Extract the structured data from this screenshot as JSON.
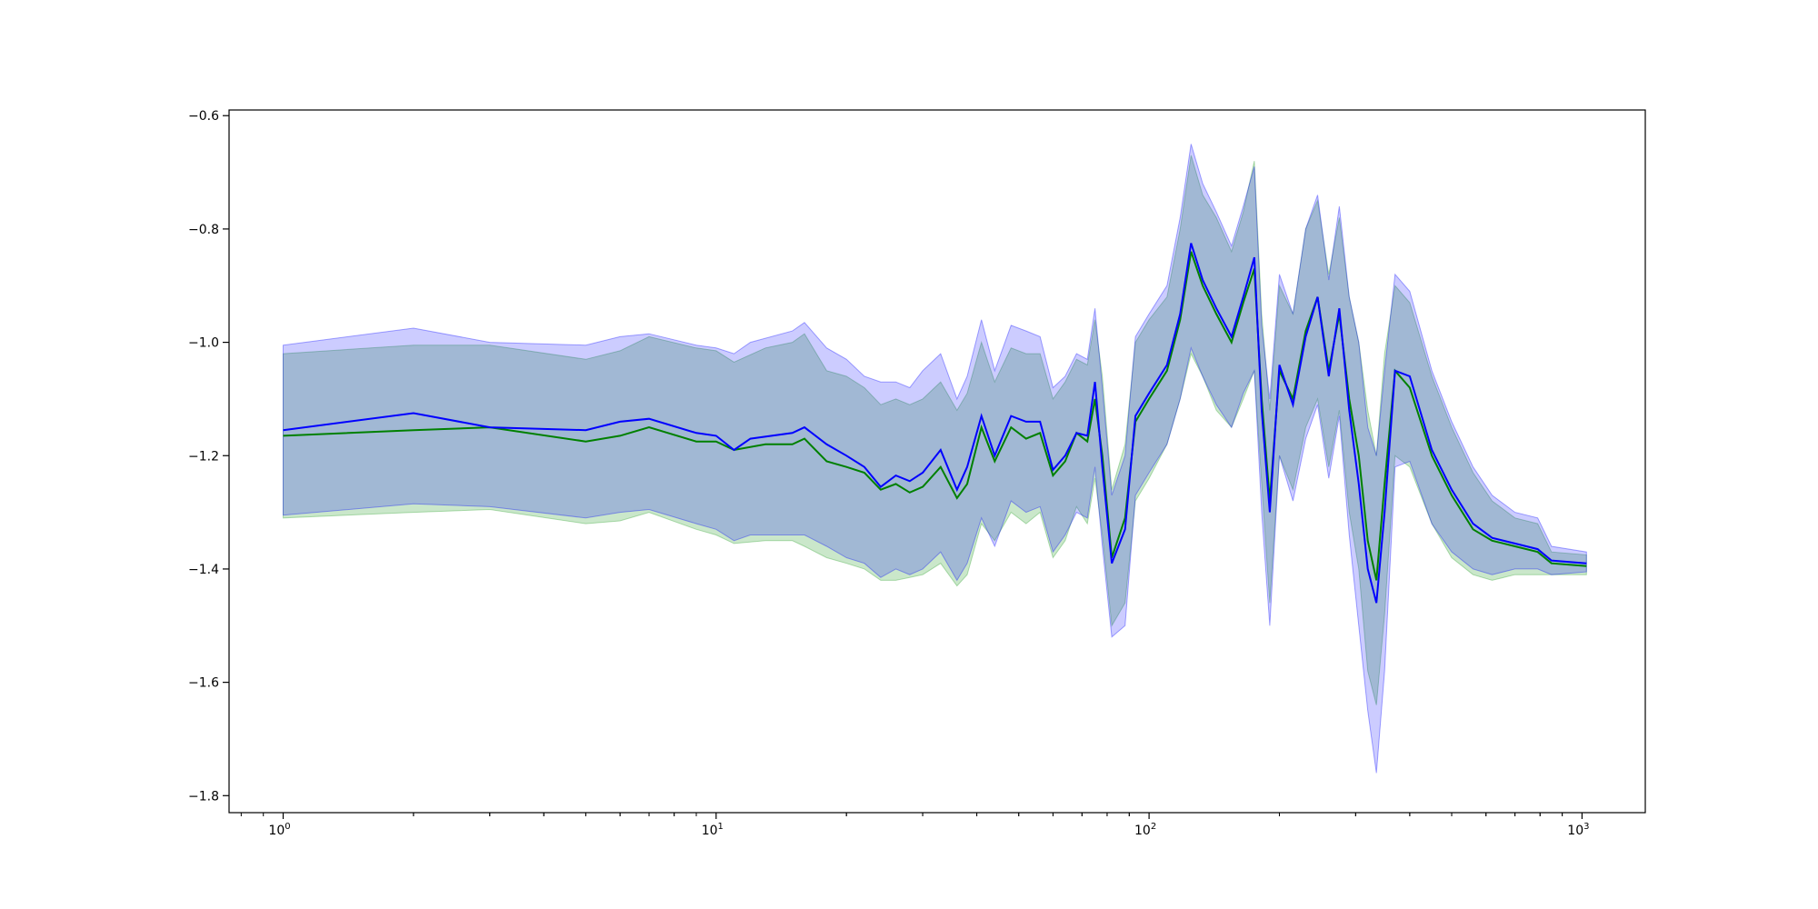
{
  "chart_data": {
    "type": "line",
    "x_scale": "log",
    "xlim": [
      0.75,
      1400
    ],
    "ylim": [
      -1.83,
      -0.59
    ],
    "grid": false,
    "legend": "none",
    "x_ticks": [
      {
        "value": 1,
        "base": "10",
        "exp": "0"
      },
      {
        "value": 10,
        "base": "10",
        "exp": "1"
      },
      {
        "value": 100,
        "base": "10",
        "exp": "2"
      },
      {
        "value": 1000,
        "base": "10",
        "exp": "3"
      }
    ],
    "y_ticks": [
      {
        "value": -0.6,
        "label": "−0.6"
      },
      {
        "value": -0.8,
        "label": "−0.8"
      },
      {
        "value": -1.0,
        "label": "−1.0"
      },
      {
        "value": -1.2,
        "label": "−1.2"
      },
      {
        "value": -1.4,
        "label": "−1.4"
      },
      {
        "value": -1.6,
        "label": "−1.6"
      },
      {
        "value": -1.8,
        "label": "−1.8"
      }
    ],
    "series": [
      {
        "color": "#008000",
        "band_color": "#2ca02c",
        "points": [
          [
            1,
            -1.165,
            -1.02,
            -1.31
          ],
          [
            2,
            -1.155,
            -1.005,
            -1.3
          ],
          [
            3,
            -1.15,
            -1.005,
            -1.295
          ],
          [
            5,
            -1.175,
            -1.03,
            -1.32
          ],
          [
            6,
            -1.165,
            -1.015,
            -1.315
          ],
          [
            7,
            -1.15,
            -0.99,
            -1.3
          ],
          [
            9,
            -1.175,
            -1.01,
            -1.33
          ],
          [
            10,
            -1.175,
            -1.015,
            -1.34
          ],
          [
            11,
            -1.19,
            -1.035,
            -1.355
          ],
          [
            13,
            -1.18,
            -1.01,
            -1.35
          ],
          [
            15,
            -1.18,
            -1.0,
            -1.35
          ],
          [
            16,
            -1.17,
            -0.985,
            -1.36
          ],
          [
            18,
            -1.21,
            -1.05,
            -1.38
          ],
          [
            20,
            -1.22,
            -1.06,
            -1.39
          ],
          [
            22,
            -1.23,
            -1.08,
            -1.4
          ],
          [
            24,
            -1.26,
            -1.11,
            -1.42
          ],
          [
            26,
            -1.25,
            -1.1,
            -1.42
          ],
          [
            28,
            -1.265,
            -1.11,
            -1.415
          ],
          [
            30,
            -1.255,
            -1.1,
            -1.41
          ],
          [
            33,
            -1.22,
            -1.07,
            -1.39
          ],
          [
            36,
            -1.275,
            -1.12,
            -1.43
          ],
          [
            38,
            -1.25,
            -1.09,
            -1.41
          ],
          [
            41,
            -1.15,
            -1.0,
            -1.32
          ],
          [
            44,
            -1.21,
            -1.07,
            -1.35
          ],
          [
            48,
            -1.15,
            -1.01,
            -1.3
          ],
          [
            52,
            -1.17,
            -1.02,
            -1.32
          ],
          [
            56,
            -1.16,
            -1.02,
            -1.3
          ],
          [
            60,
            -1.235,
            -1.1,
            -1.38
          ],
          [
            64,
            -1.21,
            -1.07,
            -1.35
          ],
          [
            68,
            -1.16,
            -1.03,
            -1.29
          ],
          [
            72,
            -1.175,
            -1.04,
            -1.32
          ],
          [
            75,
            -1.1,
            -0.96,
            -1.24
          ],
          [
            78,
            -1.2,
            -1.06,
            -1.34
          ],
          [
            82,
            -1.38,
            -1.26,
            -1.5
          ],
          [
            88,
            -1.31,
            -1.18,
            -1.46
          ],
          [
            93,
            -1.14,
            -1.0,
            -1.28
          ],
          [
            100,
            -1.1,
            -0.96,
            -1.24
          ],
          [
            110,
            -1.05,
            -0.92,
            -1.18
          ],
          [
            118,
            -0.96,
            -0.8,
            -1.1
          ],
          [
            125,
            -0.84,
            -0.67,
            -1.02
          ],
          [
            133,
            -0.9,
            -0.74,
            -1.06
          ],
          [
            143,
            -0.95,
            -0.78,
            -1.12
          ],
          [
            155,
            -1.0,
            -0.84,
            -1.15
          ],
          [
            165,
            -0.93,
            -0.77,
            -1.1
          ],
          [
            175,
            -0.87,
            -0.68,
            -1.05
          ],
          [
            182,
            -1.1,
            -0.95,
            -1.25
          ],
          [
            190,
            -1.28,
            -1.12,
            -1.46
          ],
          [
            200,
            -1.05,
            -0.9,
            -1.2
          ],
          [
            215,
            -1.1,
            -0.95,
            -1.26
          ],
          [
            230,
            -0.98,
            -0.8,
            -1.15
          ],
          [
            245,
            -0.92,
            -0.75,
            -1.1
          ],
          [
            260,
            -1.05,
            -0.88,
            -1.22
          ],
          [
            275,
            -0.95,
            -0.78,
            -1.12
          ],
          [
            290,
            -1.1,
            -0.92,
            -1.3
          ],
          [
            305,
            -1.2,
            -1.0,
            -1.4
          ],
          [
            320,
            -1.35,
            -1.12,
            -1.58
          ],
          [
            335,
            -1.42,
            -1.2,
            -1.64
          ],
          [
            350,
            -1.25,
            -1.02,
            -1.48
          ],
          [
            370,
            -1.05,
            -0.9,
            -1.2
          ],
          [
            400,
            -1.08,
            -0.93,
            -1.22
          ],
          [
            450,
            -1.2,
            -1.06,
            -1.32
          ],
          [
            500,
            -1.27,
            -1.15,
            -1.38
          ],
          [
            560,
            -1.33,
            -1.23,
            -1.41
          ],
          [
            620,
            -1.35,
            -1.28,
            -1.42
          ],
          [
            700,
            -1.36,
            -1.31,
            -1.41
          ],
          [
            790,
            -1.37,
            -1.32,
            -1.41
          ],
          [
            850,
            -1.39,
            -1.37,
            -1.41
          ],
          [
            1024,
            -1.395,
            -1.375,
            -1.41
          ]
        ]
      },
      {
        "color": "#0000ff",
        "band_color": "#0000ff",
        "points": [
          [
            1,
            -1.155,
            -1.005,
            -1.305
          ],
          [
            2,
            -1.125,
            -0.975,
            -1.285
          ],
          [
            3,
            -1.15,
            -1.0,
            -1.29
          ],
          [
            5,
            -1.155,
            -1.005,
            -1.31
          ],
          [
            6,
            -1.14,
            -0.99,
            -1.3
          ],
          [
            7,
            -1.135,
            -0.985,
            -1.295
          ],
          [
            9,
            -1.16,
            -1.005,
            -1.32
          ],
          [
            10,
            -1.165,
            -1.01,
            -1.33
          ],
          [
            11,
            -1.19,
            -1.02,
            -1.35
          ],
          [
            12,
            -1.17,
            -1.0,
            -1.34
          ],
          [
            15,
            -1.16,
            -0.98,
            -1.34
          ],
          [
            16,
            -1.15,
            -0.965,
            -1.34
          ],
          [
            18,
            -1.18,
            -1.01,
            -1.36
          ],
          [
            20,
            -1.2,
            -1.03,
            -1.38
          ],
          [
            22,
            -1.22,
            -1.06,
            -1.39
          ],
          [
            24,
            -1.255,
            -1.07,
            -1.415
          ],
          [
            26,
            -1.235,
            -1.07,
            -1.4
          ],
          [
            28,
            -1.245,
            -1.08,
            -1.41
          ],
          [
            30,
            -1.23,
            -1.05,
            -1.4
          ],
          [
            33,
            -1.19,
            -1.02,
            -1.37
          ],
          [
            36,
            -1.26,
            -1.1,
            -1.42
          ],
          [
            38,
            -1.22,
            -1.06,
            -1.39
          ],
          [
            41,
            -1.13,
            -0.96,
            -1.31
          ],
          [
            44,
            -1.2,
            -1.05,
            -1.36
          ],
          [
            48,
            -1.13,
            -0.97,
            -1.28
          ],
          [
            52,
            -1.14,
            -0.98,
            -1.3
          ],
          [
            56,
            -1.14,
            -0.99,
            -1.29
          ],
          [
            60,
            -1.225,
            -1.08,
            -1.37
          ],
          [
            64,
            -1.2,
            -1.06,
            -1.34
          ],
          [
            68,
            -1.16,
            -1.02,
            -1.3
          ],
          [
            72,
            -1.165,
            -1.03,
            -1.31
          ],
          [
            75,
            -1.07,
            -0.94,
            -1.22
          ],
          [
            78,
            -1.22,
            -1.08,
            -1.36
          ],
          [
            82,
            -1.39,
            -1.27,
            -1.52
          ],
          [
            88,
            -1.33,
            -1.2,
            -1.5
          ],
          [
            93,
            -1.13,
            -0.99,
            -1.27
          ],
          [
            100,
            -1.09,
            -0.95,
            -1.23
          ],
          [
            110,
            -1.04,
            -0.9,
            -1.18
          ],
          [
            118,
            -0.95,
            -0.78,
            -1.1
          ],
          [
            125,
            -0.825,
            -0.65,
            -1.01
          ],
          [
            133,
            -0.89,
            -0.72,
            -1.06
          ],
          [
            143,
            -0.94,
            -0.77,
            -1.11
          ],
          [
            155,
            -0.99,
            -0.83,
            -1.15
          ],
          [
            165,
            -0.92,
            -0.76,
            -1.09
          ],
          [
            175,
            -0.85,
            -0.69,
            -1.05
          ],
          [
            182,
            -1.12,
            -0.97,
            -1.3
          ],
          [
            190,
            -1.3,
            -1.1,
            -1.5
          ],
          [
            200,
            -1.04,
            -0.88,
            -1.2
          ],
          [
            215,
            -1.11,
            -0.95,
            -1.28
          ],
          [
            230,
            -0.99,
            -0.8,
            -1.17
          ],
          [
            245,
            -0.92,
            -0.74,
            -1.11
          ],
          [
            260,
            -1.06,
            -0.89,
            -1.24
          ],
          [
            275,
            -0.94,
            -0.76,
            -1.13
          ],
          [
            290,
            -1.12,
            -0.92,
            -1.34
          ],
          [
            305,
            -1.25,
            -1.0,
            -1.5
          ],
          [
            320,
            -1.4,
            -1.15,
            -1.65
          ],
          [
            335,
            -1.46,
            -1.2,
            -1.76
          ],
          [
            350,
            -1.3,
            -1.05,
            -1.58
          ],
          [
            370,
            -1.05,
            -0.88,
            -1.22
          ],
          [
            400,
            -1.06,
            -0.91,
            -1.21
          ],
          [
            450,
            -1.19,
            -1.05,
            -1.32
          ],
          [
            500,
            -1.26,
            -1.14,
            -1.37
          ],
          [
            560,
            -1.32,
            -1.22,
            -1.4
          ],
          [
            620,
            -1.345,
            -1.27,
            -1.41
          ],
          [
            700,
            -1.355,
            -1.3,
            -1.4
          ],
          [
            790,
            -1.365,
            -1.31,
            -1.4
          ],
          [
            850,
            -1.385,
            -1.36,
            -1.41
          ],
          [
            1024,
            -1.39,
            -1.37,
            -1.405
          ]
        ]
      }
    ]
  }
}
